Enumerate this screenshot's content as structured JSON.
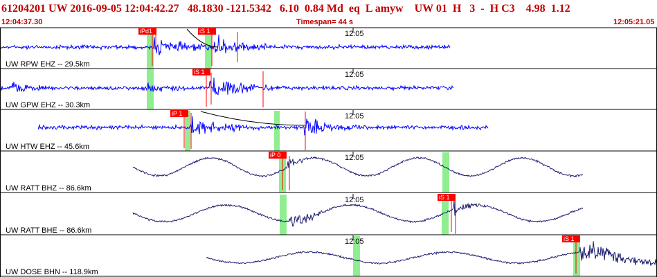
{
  "header": {
    "event_line": "61204201 UW 2016-09-05 12:04:42.27   48.1830 -121.5342   6.10  0.84 Md  eq  L amyw    UW 01  H   3  -  H C3    4.98  1.12",
    "start_time": "12:04:37.30",
    "timespan": "Timespan=  44 s",
    "end_time": "12:05:21.05"
  },
  "colors": {
    "header_text": "#c00000",
    "trace_short_period": "#0000ff",
    "trace_broadband": "#1a1a6e",
    "pick_box": "#ff0000",
    "pick_window": "#90ee90",
    "grid": "#000000"
  },
  "panels": [
    {
      "label": "UW RPW EHZ -- 29.5km",
      "time": "12:05",
      "color": "blue"
    },
    {
      "label": "UW GPW EHZ -- 30.3km",
      "time": "12:05",
      "color": "blue"
    },
    {
      "label": "UW HTW EHZ -- 45.6km",
      "time": "12:05",
      "color": "blue"
    },
    {
      "label": "UW RATT BHZ -- 86.6km",
      "time": "12:05",
      "color": "navy"
    },
    {
      "label": "UW RATT BHE -- 86.6km",
      "time": "12:05",
      "color": "navy"
    },
    {
      "label": "UW DOSE BHN -- 118.9km",
      "time": "12:05",
      "color": "navy"
    }
  ],
  "picks": [
    {
      "panel": 0,
      "label": "iPd1"
    },
    {
      "panel": 0,
      "label": "iS 1"
    },
    {
      "panel": 1,
      "label": "iS 1"
    },
    {
      "panel": 2,
      "label": "iP 1"
    },
    {
      "panel": 3,
      "label": "iP 0"
    },
    {
      "panel": 4,
      "label": "iS 1"
    },
    {
      "panel": 5,
      "label": "iS 1"
    }
  ]
}
